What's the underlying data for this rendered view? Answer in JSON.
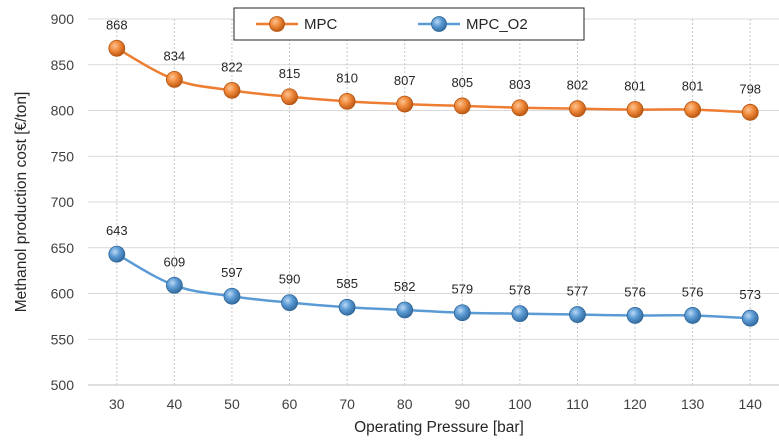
{
  "chart_data": {
    "type": "line",
    "x": [
      30,
      40,
      50,
      60,
      70,
      80,
      90,
      100,
      110,
      120,
      130,
      140
    ],
    "series": [
      {
        "name": "MPC",
        "values": [
          868,
          834,
          822,
          815,
          810,
          807,
          805,
          803,
          802,
          801,
          801,
          798
        ],
        "color": "#ED7D31",
        "marker_fill": "#F08A3C",
        "marker_dark": "#B6530F"
      },
      {
        "name": "MPC_O2",
        "values": [
          643,
          609,
          597,
          590,
          585,
          582,
          579,
          578,
          577,
          576,
          576,
          573
        ],
        "color": "#5B9BD5",
        "marker_fill": "#5B9BD5",
        "marker_dark": "#2F6699"
      }
    ],
    "xlabel": "Operating Pressure [bar]",
    "ylabel": "Methanol production cost [€/ton]",
    "ylim": [
      500,
      900
    ],
    "yticks": [
      500,
      550,
      600,
      650,
      700,
      750,
      800,
      850,
      900
    ],
    "grid": "both",
    "legend_position": "top-center"
  }
}
